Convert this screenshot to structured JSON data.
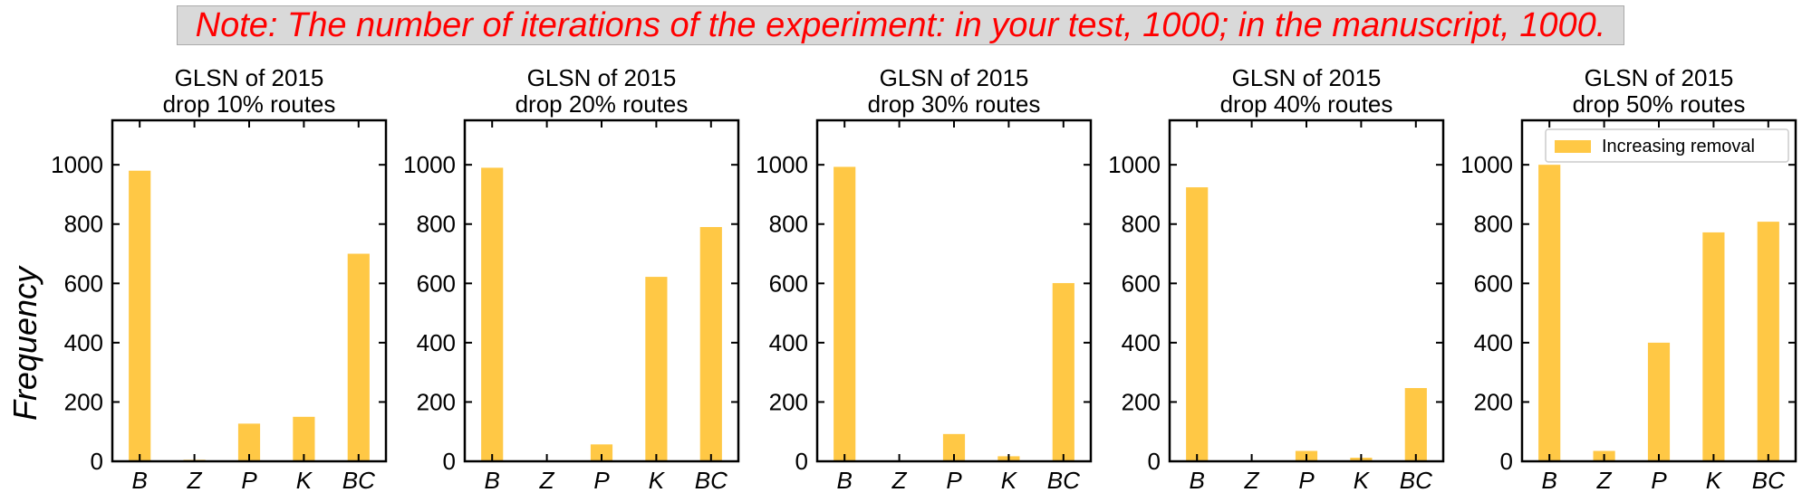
{
  "note": "Note: The number of iterations of the experiment: in your test, 1000; in the manuscript, 1000.",
  "ylabel": "Frequency",
  "bar_color": "#ffc845",
  "chart_data": [
    {
      "type": "bar",
      "title_line1": "GLSN of 2015",
      "title_line2": "drop 10% routes",
      "categories": [
        "B",
        "Z",
        "P",
        "K",
        "BC"
      ],
      "values": [
        980,
        5,
        127,
        150,
        700
      ],
      "ylim": [
        0,
        1150
      ],
      "yticks": [
        0,
        200,
        400,
        600,
        800,
        1000
      ]
    },
    {
      "type": "bar",
      "title_line1": "GLSN of 2015",
      "title_line2": "drop 20% routes",
      "categories": [
        "B",
        "Z",
        "P",
        "K",
        "BC"
      ],
      "values": [
        990,
        0,
        57,
        622,
        790
      ],
      "ylim": [
        0,
        1150
      ],
      "yticks": [
        0,
        200,
        400,
        600,
        800,
        1000
      ]
    },
    {
      "type": "bar",
      "title_line1": "GLSN of 2015",
      "title_line2": "drop 30% routes",
      "categories": [
        "B",
        "Z",
        "P",
        "K",
        "BC"
      ],
      "values": [
        993,
        0,
        92,
        17,
        601
      ],
      "ylim": [
        0,
        1150
      ],
      "yticks": [
        0,
        200,
        400,
        600,
        800,
        1000
      ]
    },
    {
      "type": "bar",
      "title_line1": "GLSN of 2015",
      "title_line2": "drop 40% routes",
      "categories": [
        "B",
        "Z",
        "P",
        "K",
        "BC"
      ],
      "values": [
        924,
        0,
        35,
        12,
        247
      ],
      "ylim": [
        0,
        1150
      ],
      "yticks": [
        0,
        200,
        400,
        600,
        800,
        1000
      ]
    },
    {
      "type": "bar",
      "title_line1": "GLSN of 2015",
      "title_line2": "drop 50% routes",
      "categories": [
        "B",
        "Z",
        "P",
        "K",
        "BC"
      ],
      "values": [
        1000,
        35,
        400,
        772,
        808
      ],
      "ylim": [
        0,
        1150
      ],
      "yticks": [
        0,
        200,
        400,
        600,
        800,
        1000
      ],
      "legend": {
        "label": "Increasing removal",
        "placement": "top-right"
      }
    }
  ]
}
